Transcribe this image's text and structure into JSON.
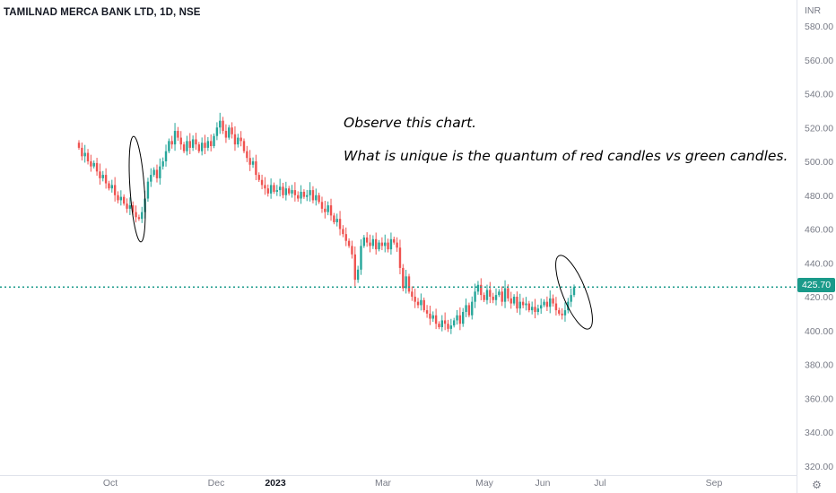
{
  "header": {
    "title": "TAMILNAD MERCA BANK LTD, 1D, NSE"
  },
  "annotation": {
    "line1": "Observe this chart.",
    "line2": "What is unique is the quantum of red candles vs green candles."
  },
  "price_label": "425.70",
  "axis_unit": "INR",
  "scale_icon": "gear-icon",
  "colors": {
    "up": "#26a69a",
    "down": "#ef5350",
    "price_line": "#1a9a8a",
    "axis_text": "#787b86"
  },
  "chart_data": {
    "type": "candlestick",
    "title": "TAMILNAD MERCA BANK LTD, 1D, NSE",
    "ylabel": "INR",
    "ylim": [
      315,
      585
    ],
    "y_ticks": [
      "580.00",
      "560.00",
      "540.00",
      "520.00",
      "500.00",
      "480.00",
      "460.00",
      "440.00",
      "420.00",
      "400.00",
      "380.00",
      "360.00",
      "340.00",
      "320.00"
    ],
    "x_ticks": [
      "Oct",
      "Dec",
      "2023",
      "Mar",
      "May",
      "Jun",
      "Jul",
      "Sep"
    ],
    "last_price": 425.7,
    "grid": false,
    "closes": [
      508,
      503,
      505,
      500,
      497,
      499,
      494,
      490,
      492,
      487,
      484,
      486,
      480,
      477,
      479,
      475,
      472,
      474,
      470,
      467,
      466,
      470,
      478,
      488,
      492,
      495,
      490,
      497,
      500,
      506,
      512,
      510,
      518,
      514,
      510,
      506,
      512,
      508,
      513,
      510,
      506,
      511,
      508,
      512,
      509,
      515,
      520,
      524,
      518,
      514,
      520,
      516,
      510,
      514,
      512,
      506,
      502,
      498,
      500,
      492,
      489,
      486,
      484,
      481,
      486,
      482,
      483,
      485,
      480,
      484,
      481,
      483,
      480,
      478,
      482,
      479,
      480,
      483,
      477,
      480,
      476,
      472,
      470,
      474,
      468,
      464,
      466,
      460,
      457,
      453,
      450,
      445,
      430,
      436,
      450,
      455,
      452,
      450,
      454,
      448,
      452,
      450,
      452,
      448,
      454,
      452,
      449,
      437,
      425,
      432,
      423,
      420,
      417,
      415,
      418,
      412,
      410,
      407,
      409,
      404,
      402,
      406,
      404,
      401,
      403,
      406,
      409,
      404,
      411,
      415,
      409,
      417,
      423,
      427,
      421,
      418,
      424,
      420,
      418,
      421,
      423,
      417,
      425,
      419,
      416,
      420,
      413,
      417,
      415,
      416,
      412,
      414,
      411,
      413,
      415,
      417,
      414,
      419,
      416,
      412,
      410,
      409,
      412,
      417,
      421,
      425.7
    ],
    "annotations": [
      "Observe this chart.",
      "What is unique is the quantum of red candles vs green candles."
    ]
  }
}
